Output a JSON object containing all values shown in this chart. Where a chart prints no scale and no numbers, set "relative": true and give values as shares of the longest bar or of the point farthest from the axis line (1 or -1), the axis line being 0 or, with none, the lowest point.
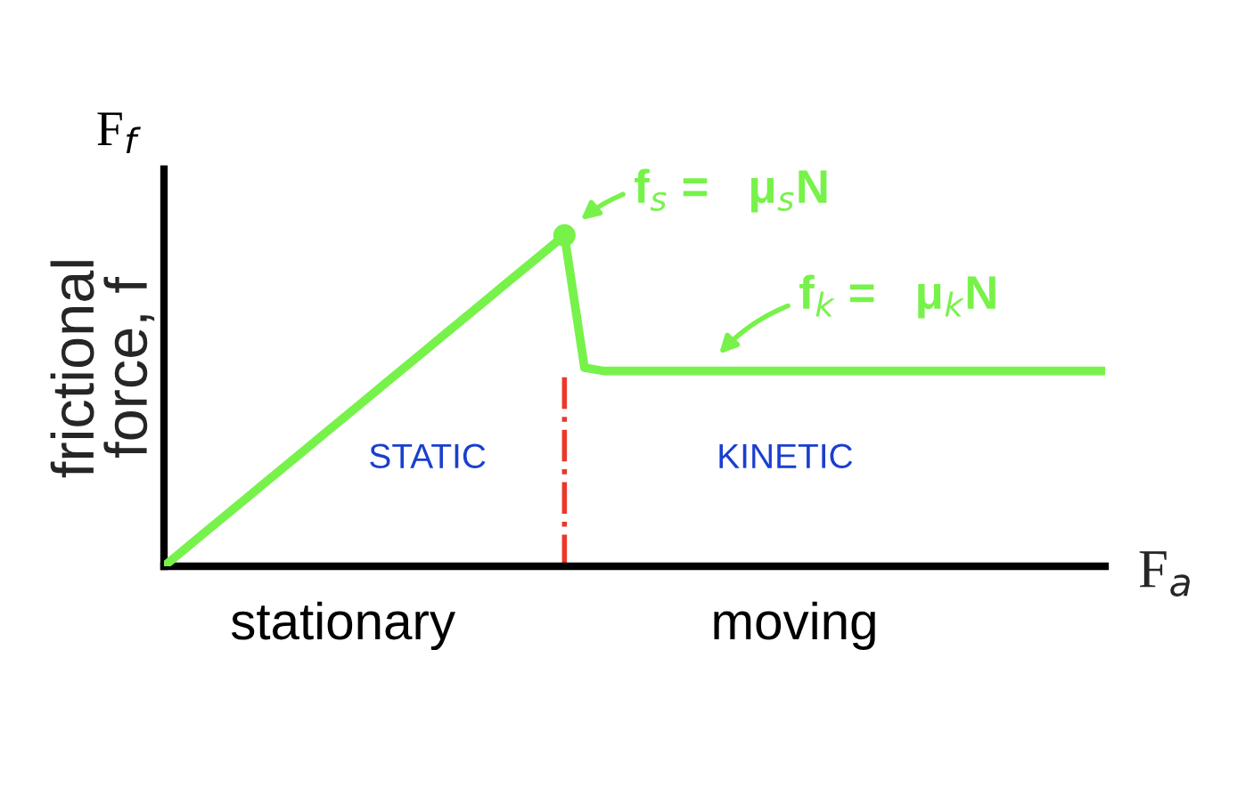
{
  "chart_data": {
    "type": "line",
    "relative": true,
    "xlabel": "F$_{a}$",
    "ylabel": "frictional\nforce, f",
    "categories": [
      null,
      null,
      null,
      null,
      null,
      null,
      null,
      null,
      null,
      null,
      null,
      null,
      null,
      null,
      null,
      null,
      null,
      null,
      null,
      null,
      null,
      null,
      null,
      null,
      null,
      null,
      null,
      null,
      null,
      null,
      null,
      null,
      null,
      null,
      null,
      null,
      null,
      null,
      null,
      null,
      null,
      null,
      null,
      null,
      null,
      null,
      null,
      null
    ],
    "series": [
      {
        "color": "#77f24a",
        "values": [
          0,
          0.05,
          0.1,
          0.15,
          0.2,
          0.25,
          0.3,
          0.35,
          0.4,
          0.45,
          0.5,
          0.55,
          0.6,
          0.65,
          0.7,
          0.75,
          0.8,
          0.85,
          0.9,
          0.95,
          1,
          0.6,
          0.59,
          0.59,
          0.59,
          0.59,
          0.59,
          0.59,
          0.59,
          0.59,
          0.59,
          0.59,
          0.59,
          0.59,
          0.59,
          0.59,
          0.59,
          0.59,
          0.59,
          0.59,
          0.59,
          0.59,
          0.59,
          0.59,
          0.59,
          0.59,
          0.59,
          0.59
        ]
      }
    ],
    "ref_lines": [
      {
        "axis": "x",
        "color": "#e8392b",
        "line_style": "dashdot"
      }
    ],
    "annotations": [
      "f$_{s}$ =   μ$_{s}$N",
      "f$_{k}$ =   μ$_{k}$N",
      "STATIC",
      "KINETIC",
      "stationary",
      "moving",
      "F$_{f}$"
    ]
  }
}
